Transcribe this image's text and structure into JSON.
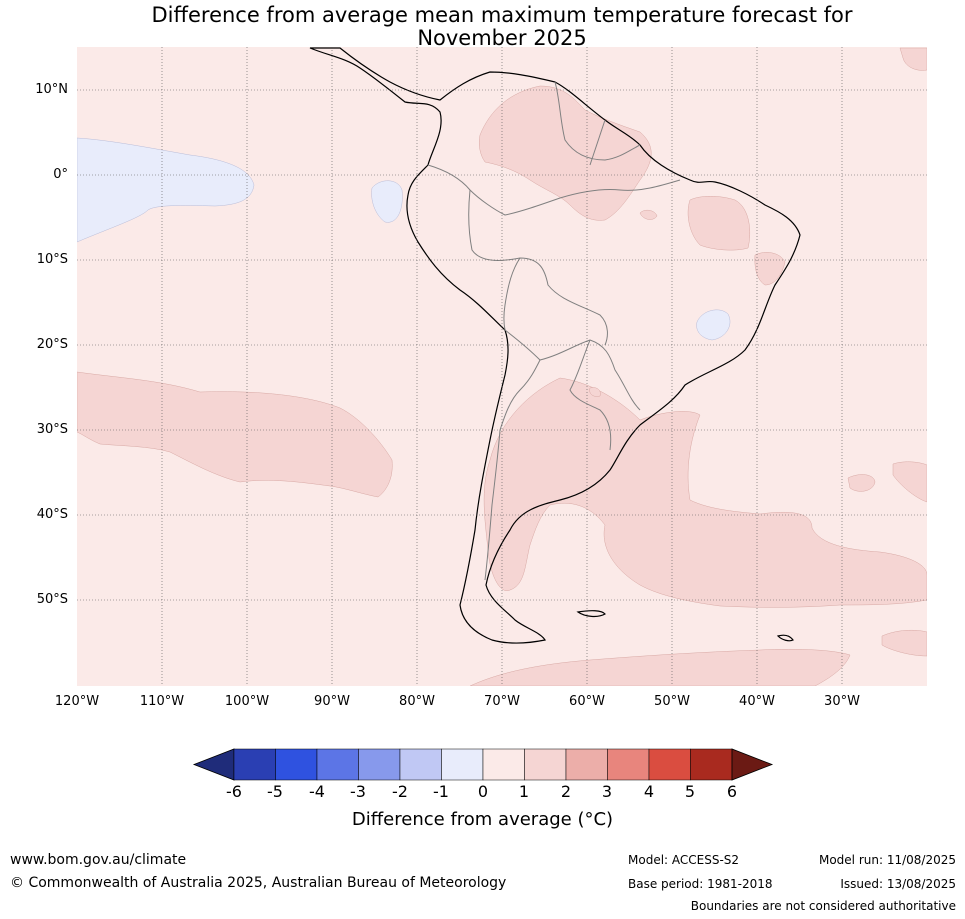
{
  "title": {
    "line1": "Difference from average mean maximum temperature forecast for",
    "line2": "November 2025"
  },
  "map": {
    "latitude_labels": [
      "10°N",
      "0°",
      "10°S",
      "20°S",
      "30°S",
      "40°S",
      "50°S"
    ],
    "longitude_labels": [
      "120°W",
      "110°W",
      "100°W",
      "90°W",
      "80°W",
      "70°W",
      "60°W",
      "50°W",
      "40°W",
      "30°W"
    ],
    "background_color": "#fbeae8",
    "anomaly_0_1_color": "#fbeae8",
    "anomaly_1_2_color": "#f5d5d3",
    "anomaly_neg1_0_color": "#e8ecfb"
  },
  "colorbar": {
    "tick_labels": [
      "-6",
      "-5",
      "-4",
      "-3",
      "-2",
      "-1",
      "0",
      "1",
      "2",
      "3",
      "4",
      "5",
      "6"
    ],
    "colors": [
      "#1f2c7a",
      "#2a3fb3",
      "#2f52e0",
      "#5c75e6",
      "#8799ec",
      "#c0c8f4",
      "#e8ecfb",
      "#fbeae8",
      "#f5d5d3",
      "#ecaea9",
      "#e8857d",
      "#da4d40",
      "#a92a1f",
      "#6b1a14"
    ],
    "label": "Difference from average (°C)"
  },
  "footer": {
    "website": "www.bom.gov.au/climate",
    "copyright": "© Commonwealth of Australia 2025, Australian Bureau of Meteorology",
    "model": "Model: ACCESS-S2",
    "base_period": "Base period: 1981-2018",
    "model_run": "Model run: 11/08/2025",
    "issued": "Issued: 13/08/2025",
    "disclaimer": "Boundaries are not considered authoritative"
  }
}
